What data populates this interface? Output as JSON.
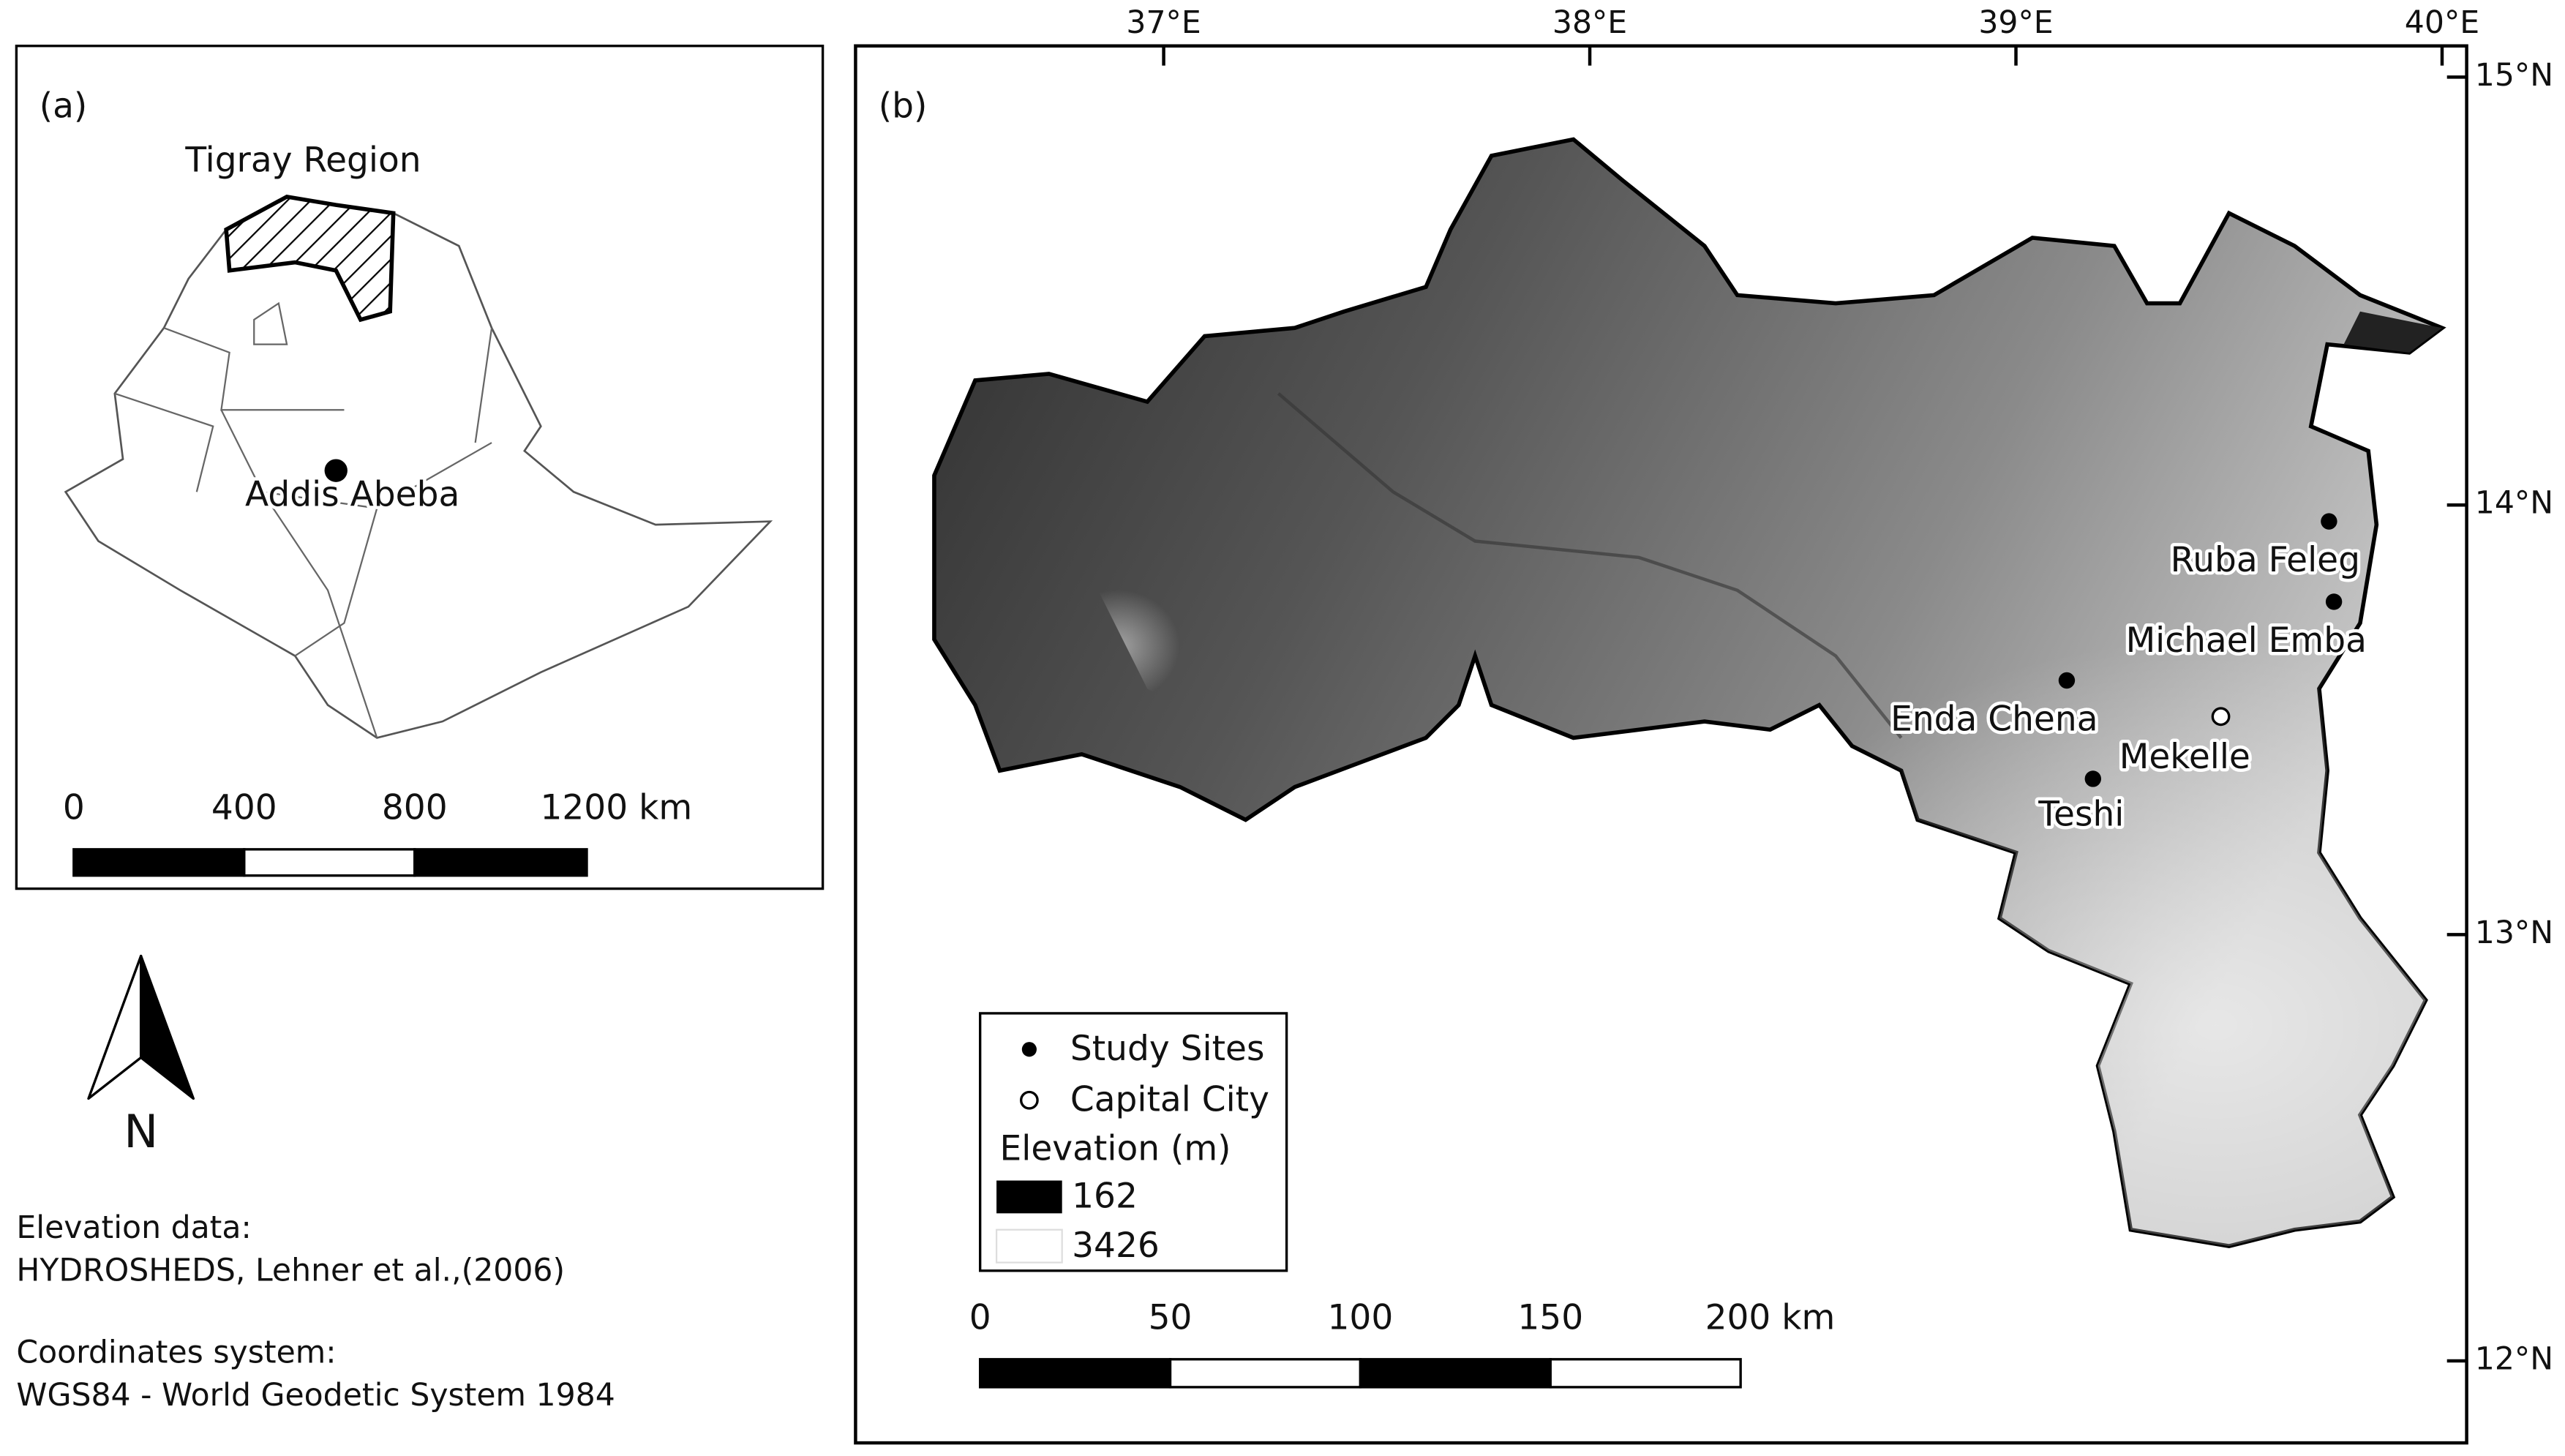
{
  "panel_a": {
    "label": "(a)",
    "region": "Tigray Region",
    "city": "Addis Abeba",
    "scale": [
      "0",
      "400",
      "800",
      "1200 km"
    ]
  },
  "north_arrow": "N",
  "notes": [
    "Elevation data:",
    "HYDROSHEDS, Lehner et al.,(2006)",
    "Coordinates system:",
    "WGS84 - World Geodetic System 1984"
  ],
  "panel_b": {
    "label": "(b)",
    "lon_ticks": [
      "37°E",
      "38°E",
      "39°E",
      "40°E"
    ],
    "lat_ticks": [
      "15°N",
      "14°N",
      "13°N",
      "12°N"
    ],
    "sites": [
      "Ruba Feleg",
      "Michael Emba",
      "Enda Chena",
      "Teshi"
    ],
    "capital": "Mekelle",
    "legend": {
      "study_sites": "Study Sites",
      "capital_city": "Capital City",
      "elevation_title": "Elevation (m)",
      "elevation_min": "162",
      "elevation_max": "3426"
    },
    "scale": [
      "0",
      "50",
      "100",
      "150",
      "200 km"
    ]
  }
}
